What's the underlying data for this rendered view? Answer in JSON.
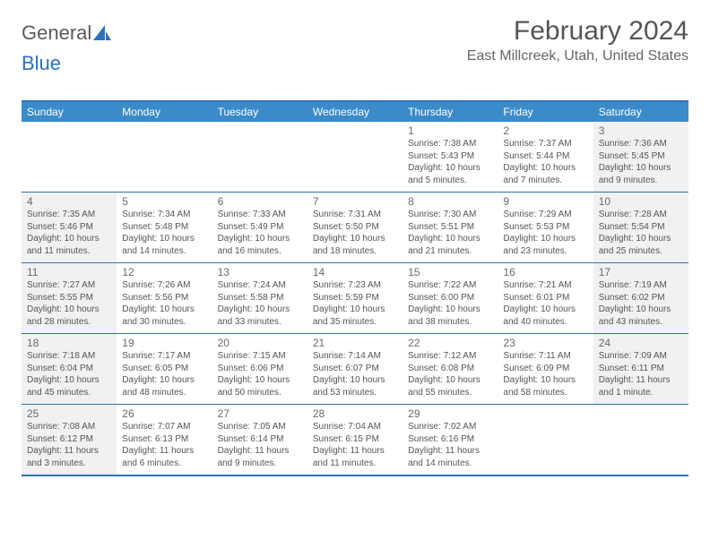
{
  "logo": {
    "text1": "General",
    "text2": "Blue"
  },
  "title": "February 2024",
  "location": "East Millcreek, Utah, United States",
  "colors": {
    "header_bg": "#3b8bc9",
    "border": "#2d72b8",
    "shaded": "#f1f1f1",
    "text": "#555555"
  },
  "day_headers": [
    "Sunday",
    "Monday",
    "Tuesday",
    "Wednesday",
    "Thursday",
    "Friday",
    "Saturday"
  ],
  "weeks": [
    [
      {
        "blank": true
      },
      {
        "blank": true
      },
      {
        "blank": true
      },
      {
        "blank": true
      },
      {
        "n": "1",
        "sr": "7:38 AM",
        "ss": "5:43 PM",
        "dl": "10 hours and 5 minutes."
      },
      {
        "n": "2",
        "sr": "7:37 AM",
        "ss": "5:44 PM",
        "dl": "10 hours and 7 minutes."
      },
      {
        "n": "3",
        "sr": "7:36 AM",
        "ss": "5:45 PM",
        "dl": "10 hours and 9 minutes.",
        "shaded": true
      }
    ],
    [
      {
        "n": "4",
        "sr": "7:35 AM",
        "ss": "5:46 PM",
        "dl": "10 hours and 11 minutes.",
        "shaded": true
      },
      {
        "n": "5",
        "sr": "7:34 AM",
        "ss": "5:48 PM",
        "dl": "10 hours and 14 minutes."
      },
      {
        "n": "6",
        "sr": "7:33 AM",
        "ss": "5:49 PM",
        "dl": "10 hours and 16 minutes."
      },
      {
        "n": "7",
        "sr": "7:31 AM",
        "ss": "5:50 PM",
        "dl": "10 hours and 18 minutes."
      },
      {
        "n": "8",
        "sr": "7:30 AM",
        "ss": "5:51 PM",
        "dl": "10 hours and 21 minutes."
      },
      {
        "n": "9",
        "sr": "7:29 AM",
        "ss": "5:53 PM",
        "dl": "10 hours and 23 minutes."
      },
      {
        "n": "10",
        "sr": "7:28 AM",
        "ss": "5:54 PM",
        "dl": "10 hours and 25 minutes.",
        "shaded": true
      }
    ],
    [
      {
        "n": "11",
        "sr": "7:27 AM",
        "ss": "5:55 PM",
        "dl": "10 hours and 28 minutes.",
        "shaded": true
      },
      {
        "n": "12",
        "sr": "7:26 AM",
        "ss": "5:56 PM",
        "dl": "10 hours and 30 minutes."
      },
      {
        "n": "13",
        "sr": "7:24 AM",
        "ss": "5:58 PM",
        "dl": "10 hours and 33 minutes."
      },
      {
        "n": "14",
        "sr": "7:23 AM",
        "ss": "5:59 PM",
        "dl": "10 hours and 35 minutes."
      },
      {
        "n": "15",
        "sr": "7:22 AM",
        "ss": "6:00 PM",
        "dl": "10 hours and 38 minutes."
      },
      {
        "n": "16",
        "sr": "7:21 AM",
        "ss": "6:01 PM",
        "dl": "10 hours and 40 minutes."
      },
      {
        "n": "17",
        "sr": "7:19 AM",
        "ss": "6:02 PM",
        "dl": "10 hours and 43 minutes.",
        "shaded": true
      }
    ],
    [
      {
        "n": "18",
        "sr": "7:18 AM",
        "ss": "6:04 PM",
        "dl": "10 hours and 45 minutes.",
        "shaded": true
      },
      {
        "n": "19",
        "sr": "7:17 AM",
        "ss": "6:05 PM",
        "dl": "10 hours and 48 minutes."
      },
      {
        "n": "20",
        "sr": "7:15 AM",
        "ss": "6:06 PM",
        "dl": "10 hours and 50 minutes."
      },
      {
        "n": "21",
        "sr": "7:14 AM",
        "ss": "6:07 PM",
        "dl": "10 hours and 53 minutes."
      },
      {
        "n": "22",
        "sr": "7:12 AM",
        "ss": "6:08 PM",
        "dl": "10 hours and 55 minutes."
      },
      {
        "n": "23",
        "sr": "7:11 AM",
        "ss": "6:09 PM",
        "dl": "10 hours and 58 minutes."
      },
      {
        "n": "24",
        "sr": "7:09 AM",
        "ss": "6:11 PM",
        "dl": "11 hours and 1 minute.",
        "shaded": true
      }
    ],
    [
      {
        "n": "25",
        "sr": "7:08 AM",
        "ss": "6:12 PM",
        "dl": "11 hours and 3 minutes.",
        "shaded": true
      },
      {
        "n": "26",
        "sr": "7:07 AM",
        "ss": "6:13 PM",
        "dl": "11 hours and 6 minutes."
      },
      {
        "n": "27",
        "sr": "7:05 AM",
        "ss": "6:14 PM",
        "dl": "11 hours and 9 minutes."
      },
      {
        "n": "28",
        "sr": "7:04 AM",
        "ss": "6:15 PM",
        "dl": "11 hours and 11 minutes."
      },
      {
        "n": "29",
        "sr": "7:02 AM",
        "ss": "6:16 PM",
        "dl": "11 hours and 14 minutes."
      },
      {
        "blank": true
      },
      {
        "blank": true
      }
    ]
  ],
  "labels": {
    "sunrise": "Sunrise: ",
    "sunset": "Sunset: ",
    "daylight": "Daylight: "
  }
}
